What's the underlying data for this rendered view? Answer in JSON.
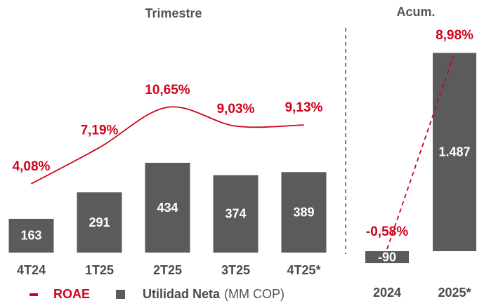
{
  "chart_data": [
    {
      "type": "bar",
      "title": "Trimestre",
      "categories": [
        "4T24",
        "1T25",
        "2T25",
        "3T25",
        "4T25*"
      ],
      "series": [
        {
          "name": "Utilidad Neta",
          "color": "#5b5b5b",
          "values": [
            163,
            291,
            434,
            374,
            389
          ]
        },
        {
          "name": "ROAE",
          "color": "#d0021b",
          "axis": "y2",
          "line_style": "solid",
          "values": [
            4.08,
            7.19,
            10.65,
            9.03,
            9.13
          ],
          "value_labels": [
            "4,08%",
            "7,19%",
            "10,65%",
            "9,03%",
            "9,13%"
          ]
        }
      ],
      "ylim": [
        0,
        1085
      ],
      "y2lim": [
        -1.83,
        17.45
      ],
      "legend": "bottom",
      "legend_note": "(MM COP)"
    },
    {
      "type": "bar",
      "title": "Acum.",
      "categories": [
        "2024",
        "2025*"
      ],
      "series": [
        {
          "color": "#5b5b5b",
          "values": [
            -90,
            1487
          ],
          "value_labels": [
            "-90",
            "1.487"
          ]
        },
        {
          "color": "#d0021b",
          "axis": "y2",
          "line_style": "dashed",
          "values": [
            -0.58,
            8.98
          ],
          "value_labels": [
            "-0,58%",
            "8,98%"
          ]
        }
      ],
      "ylim": [
        -137,
        1673
      ],
      "y2lim": [
        -1.57,
        10.17
      ]
    }
  ]
}
